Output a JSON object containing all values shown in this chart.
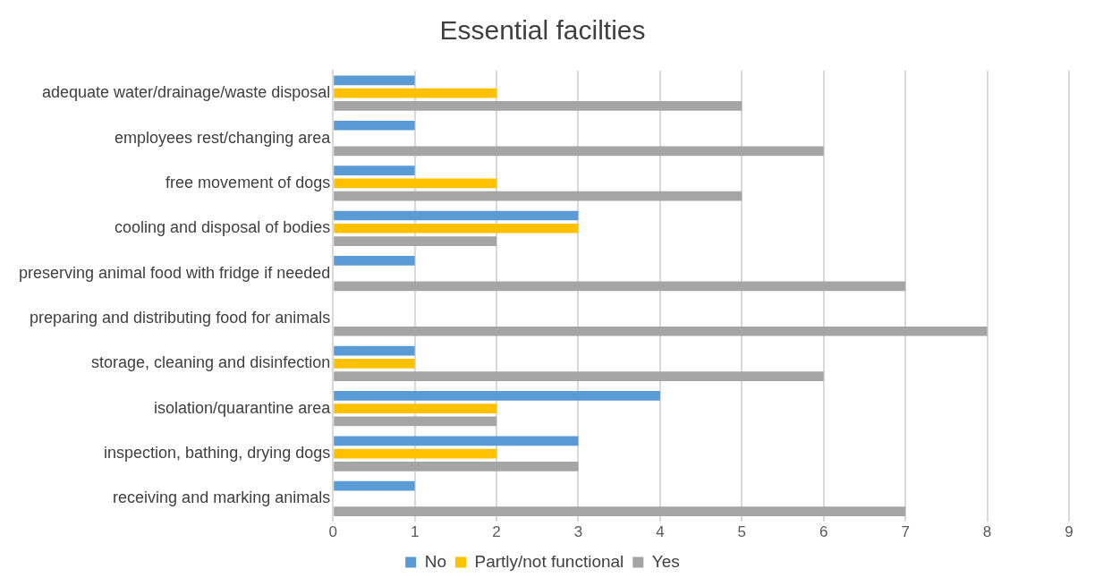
{
  "chart_data": {
    "type": "bar",
    "orientation": "horizontal",
    "title": "Essential facilties",
    "categories": [
      "adequate water/drainage/waste disposal",
      "employees rest/changing area",
      "free movement of dogs",
      "cooling and disposal of bodies",
      "preserving animal food with fridge if needed",
      "preparing and distributing food for animals",
      "storage, cleaning and disinfection",
      "isolation/quarantine area",
      "inspection, bathing, drying dogs",
      "receiving and marking animals"
    ],
    "series": [
      {
        "name": "No",
        "color": "#5b9bd5",
        "values": [
          1,
          1,
          1,
          3,
          1,
          0,
          1,
          4,
          3,
          1
        ]
      },
      {
        "name": "Partly/not functional",
        "color": "#ffc000",
        "values": [
          2,
          0,
          2,
          3,
          0,
          0,
          1,
          2,
          2,
          0
        ]
      },
      {
        "name": "Yes",
        "color": "#a5a5a5",
        "values": [
          5,
          6,
          5,
          2,
          7,
          8,
          6,
          2,
          3,
          7
        ]
      }
    ],
    "xlim": [
      0,
      9
    ],
    "xticks": [
      0,
      1,
      2,
      3,
      4,
      5,
      6,
      7,
      8,
      9
    ],
    "grid": "x",
    "legend": "bottom"
  }
}
